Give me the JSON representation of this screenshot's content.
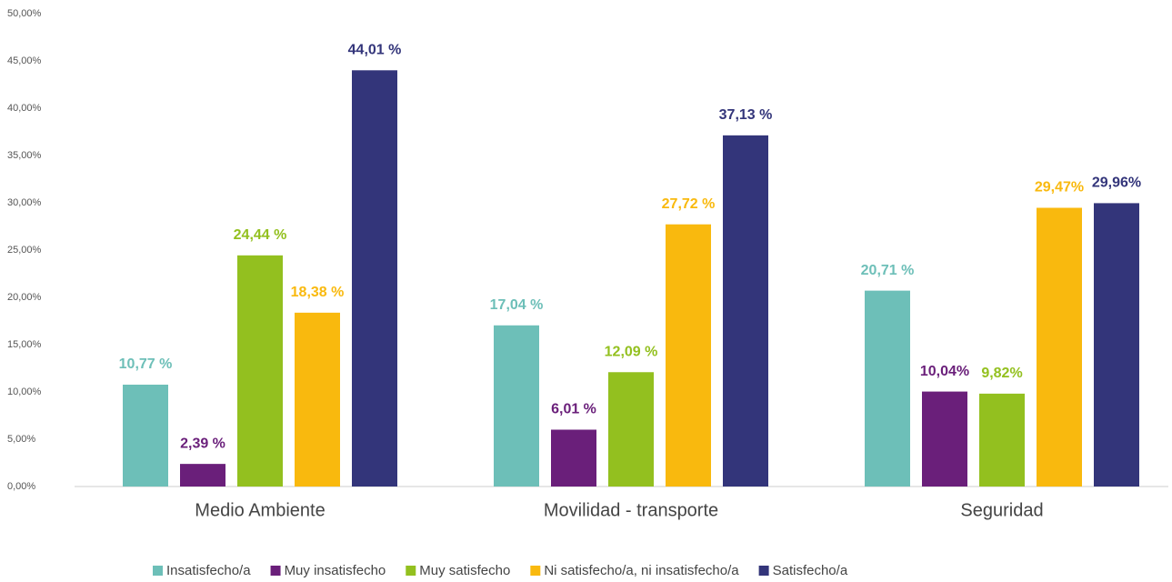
{
  "chart_data": {
    "type": "bar",
    "categories": [
      "Medio Ambiente",
      "Movilidad - transporte",
      "Seguridad"
    ],
    "series": [
      {
        "name": "Insatisfecho/a",
        "color": "#6dbfb8",
        "values": [
          10.77,
          17.04,
          20.71
        ],
        "value_labels": [
          "10,77 %",
          "17,04 %",
          "20,71 %"
        ]
      },
      {
        "name": "Muy insatisfecho",
        "color": "#6a1f7a",
        "values": [
          2.39,
          6.01,
          10.04
        ],
        "value_labels": [
          "2,39 %",
          "6,01 %",
          "10,04%"
        ]
      },
      {
        "name": "Muy satisfecho",
        "color": "#93c01f",
        "values": [
          24.44,
          12.09,
          9.82
        ],
        "value_labels": [
          "24,44 %",
          "12,09 %",
          "9,82%"
        ]
      },
      {
        "name": "Ni satisfecho/a, ni insatisfecho/a",
        "color": "#f9b90e",
        "values": [
          18.38,
          27.72,
          29.47
        ],
        "value_labels": [
          "18,38 %",
          "27,72 %",
          "29,47%"
        ]
      },
      {
        "name": "Satisfecho/a",
        "color": "#33357a",
        "values": [
          44.01,
          37.13,
          29.96
        ],
        "value_labels": [
          "44,01 %",
          "37,13 %",
          "29,96%"
        ]
      }
    ],
    "ylim": [
      0,
      50
    ],
    "yticks": [
      {
        "value": 0,
        "label": "0,00%"
      },
      {
        "value": 5,
        "label": "5,00%"
      },
      {
        "value": 10,
        "label": "10,00%"
      },
      {
        "value": 15,
        "label": "15,00%"
      },
      {
        "value": 20,
        "label": "20,00%"
      },
      {
        "value": 25,
        "label": "25,00%"
      },
      {
        "value": 30,
        "label": "30,00%"
      },
      {
        "value": 35,
        "label": "35,00%"
      },
      {
        "value": 40,
        "label": "40,00%"
      },
      {
        "value": 45,
        "label": "45,00%"
      },
      {
        "value": 50,
        "label": "50,00%"
      }
    ],
    "legend": "bottom"
  }
}
